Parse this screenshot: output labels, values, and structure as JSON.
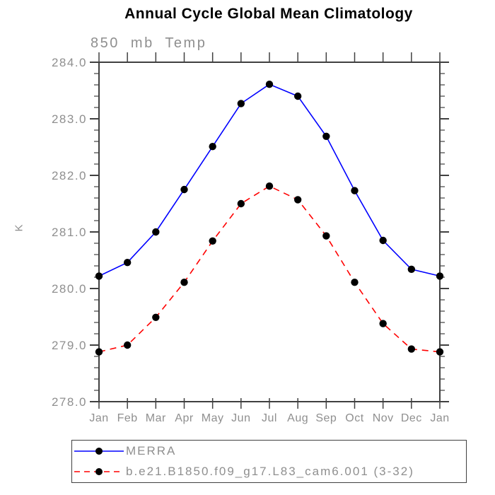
{
  "page": {
    "background": "#ffffff"
  },
  "title": "Annual Cycle Global Mean Climatology",
  "subtitle": "850 mb Temp",
  "ylabel": "K",
  "chart_data": {
    "type": "line",
    "title": "Annual Cycle Global Mean Climatology",
    "subtitle": "850 mb Temp",
    "xlabel": "",
    "ylabel": "K",
    "x_categories": [
      "Jan",
      "Feb",
      "Mar",
      "Apr",
      "May",
      "Jun",
      "Jul",
      "Aug",
      "Sep",
      "Oct",
      "Nov",
      "Dec",
      "Jan"
    ],
    "y_ticks": [
      "278.0",
      "279.0",
      "280.0",
      "281.0",
      "282.0",
      "283.0",
      "284.0"
    ],
    "ylim": [
      278.0,
      284.0
    ],
    "y_major_step": 1.0,
    "y_minor_step": 0.2,
    "grid": false,
    "legend_position": "bottom-outside-boxed",
    "series": [
      {
        "name": "MERRA",
        "color": "#0000ff",
        "line_style": "solid",
        "marker": "filled-black-circle",
        "values": [
          280.22,
          280.46,
          281.0,
          281.75,
          282.51,
          283.27,
          283.61,
          283.4,
          282.69,
          281.73,
          280.85,
          280.34,
          280.22
        ]
      },
      {
        "name": "b.e21.B1850.f09_g17.L83_cam6.001 (3-32)",
        "color": "#ff0000",
        "line_style": "dashed",
        "marker": "filled-black-circle",
        "values": [
          278.88,
          279.0,
          279.49,
          280.11,
          280.84,
          281.5,
          281.81,
          281.57,
          280.93,
          280.11,
          279.38,
          278.93,
          278.88
        ]
      }
    ]
  },
  "colors": {
    "axis": "#404040",
    "text_gray": "#8f8f8f",
    "title_black": "#000000",
    "merra_blue": "#0000ff",
    "model_red": "#ff0000",
    "marker": "#000000"
  }
}
